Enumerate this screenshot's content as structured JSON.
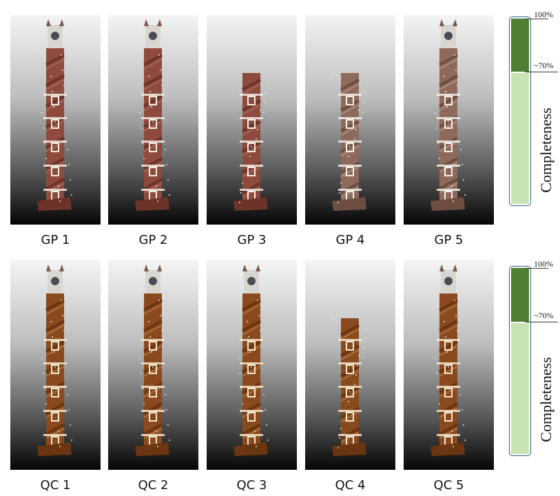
{
  "rows": [
    {
      "id": "gp",
      "panels": [
        {
          "label": "GP 1",
          "completeness_pct": 100,
          "palette": "reddish"
        },
        {
          "label": "GP 2",
          "completeness_pct": 100,
          "palette": "reddish"
        },
        {
          "label": "GP 3",
          "completeness_pct": 70,
          "palette": "reddish"
        },
        {
          "label": "GP 4",
          "completeness_pct": 70,
          "palette": "pale"
        },
        {
          "label": "GP 5",
          "completeness_pct": 100,
          "palette": "pale"
        }
      ],
      "scale": {
        "top_label": "100%",
        "mid_label": "~70%",
        "axis_label": "Completeness"
      }
    },
    {
      "id": "qc",
      "panels": [
        {
          "label": "QC 1",
          "completeness_pct": 100,
          "palette": "warm"
        },
        {
          "label": "QC 2",
          "completeness_pct": 100,
          "palette": "warm"
        },
        {
          "label": "QC 3",
          "completeness_pct": 100,
          "palette": "warm"
        },
        {
          "label": "QC 4",
          "completeness_pct": 70,
          "palette": "warm"
        },
        {
          "label": "QC 5",
          "completeness_pct": 100,
          "palette": "warm"
        }
      ],
      "scale": {
        "top_label": "100%",
        "mid_label": "~70%",
        "axis_label": "Completeness"
      }
    }
  ],
  "colors": {
    "scale_complete": "#4f7f30",
    "scale_partial": "#c8e4b4",
    "scale_border": "#2f5f86"
  }
}
